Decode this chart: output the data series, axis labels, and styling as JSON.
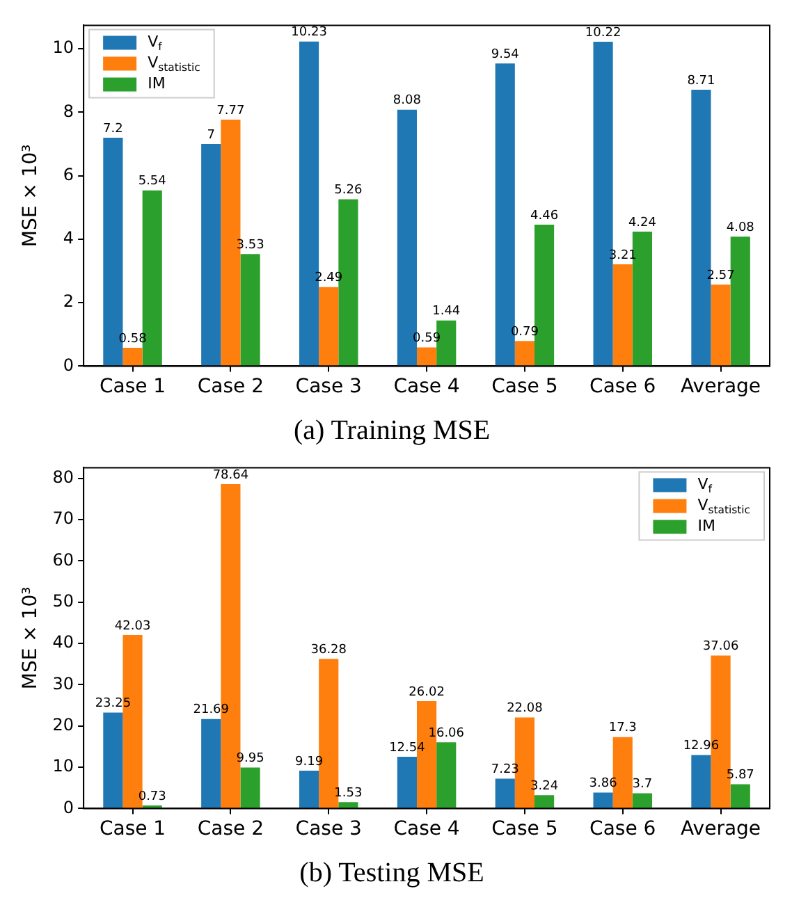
{
  "chart_data": [
    {
      "type": "bar",
      "title": "(a) Training MSE",
      "ylabel": "MSE × 10³",
      "categories": [
        "Case 1",
        "Case 2",
        "Case 3",
        "Case 4",
        "Case 5",
        "Case 6",
        "Average"
      ],
      "series": [
        {
          "name": "V$_{f}$",
          "color": "#1f77b4",
          "values": [
            7.2,
            7,
            10.23,
            8.08,
            9.54,
            10.22,
            8.71
          ]
        },
        {
          "name": "V$_{statistic}$",
          "color": "#ff7f0e",
          "values": [
            0.58,
            7.77,
            2.49,
            0.59,
            0.79,
            3.21,
            2.57
          ]
        },
        {
          "name": "IM",
          "color": "#2ca02c",
          "values": [
            5.54,
            3.53,
            5.26,
            1.44,
            4.46,
            4.24,
            4.08
          ]
        }
      ],
      "ylim": [
        0,
        10.74
      ],
      "yticks": [
        0,
        2,
        4,
        6,
        8,
        10
      ],
      "data_labels": true,
      "grid": false,
      "legend": "top left"
    },
    {
      "type": "bar",
      "title": "(b) Testing MSE",
      "ylabel": "MSE × 10³",
      "categories": [
        "Case 1",
        "Case 2",
        "Case 3",
        "Case 4",
        "Case 5",
        "Case 6",
        "Average"
      ],
      "series": [
        {
          "name": "V$_{f}$",
          "color": "#1f77b4",
          "values": [
            23.25,
            21.69,
            9.19,
            12.54,
            7.23,
            3.86,
            12.96
          ]
        },
        {
          "name": "V$_{statistic}$",
          "color": "#ff7f0e",
          "values": [
            42.03,
            78.64,
            36.28,
            26.02,
            22.08,
            17.3,
            37.06
          ]
        },
        {
          "name": "IM",
          "color": "#2ca02c",
          "values": [
            0.73,
            9.95,
            1.53,
            16.06,
            3.24,
            3.7,
            5.87
          ]
        }
      ],
      "ylim": [
        0,
        82.6
      ],
      "yticks": [
        0,
        10,
        20,
        30,
        40,
        50,
        60,
        70,
        80
      ],
      "data_labels": true,
      "grid": false,
      "legend": "top right"
    }
  ]
}
